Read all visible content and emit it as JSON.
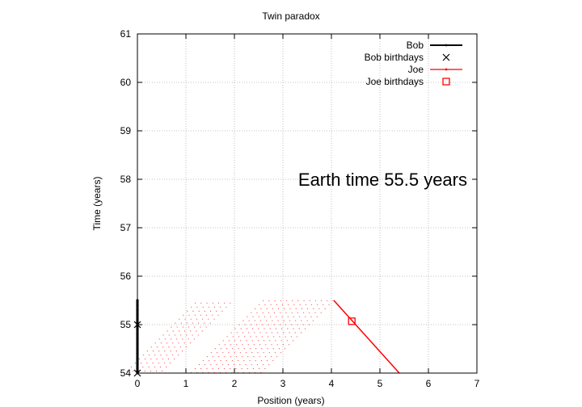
{
  "chart_data": {
    "type": "scatter",
    "title": "Twin paradox",
    "xlabel": "Position (years)",
    "ylabel": "Time (years)",
    "xlim": [
      0,
      7
    ],
    "ylim": [
      54,
      61
    ],
    "xticks": [
      0,
      1,
      2,
      3,
      4,
      5,
      6,
      7
    ],
    "yticks": [
      54,
      55,
      56,
      57,
      58,
      59,
      60,
      61
    ],
    "xtick_labels": [
      "0",
      "1",
      "2",
      "3",
      "4",
      "5",
      "6",
      "7"
    ],
    "ytick_labels": [
      "54",
      "55",
      "56",
      "57",
      "58",
      "59",
      "60",
      "61"
    ],
    "grid": true,
    "legend_position": "top-right",
    "annotation": "Earth time 55.5 years",
    "series": [
      {
        "name": "Bob",
        "style": "line",
        "color": "#000000",
        "points": [
          [
            0,
            54
          ],
          [
            0,
            55.5
          ]
        ]
      },
      {
        "name": "Bob birthdays",
        "style": "cross",
        "color": "#000000",
        "points": [
          [
            0,
            54
          ],
          [
            0,
            55
          ]
        ]
      },
      {
        "name": "Joe",
        "style": "line",
        "color": "#ff0000",
        "points": [
          [
            4.05,
            55.5
          ],
          [
            5.4,
            54
          ]
        ]
      },
      {
        "name": "Joe birthdays",
        "style": "square",
        "color": "#ff0000",
        "points": [
          [
            4.42,
            55.07
          ]
        ]
      }
    ],
    "light_rays": {
      "color": "#ff0000",
      "direction": [
        -1,
        -1
      ],
      "rows": [
        {
          "y": 55.45,
          "x_start": 1.2,
          "x_end": 2.0
        },
        {
          "y": 55.5,
          "x_start": 2.6,
          "x_end": 4.1
        }
      ],
      "diagonal_spacing": 0.12
    }
  }
}
